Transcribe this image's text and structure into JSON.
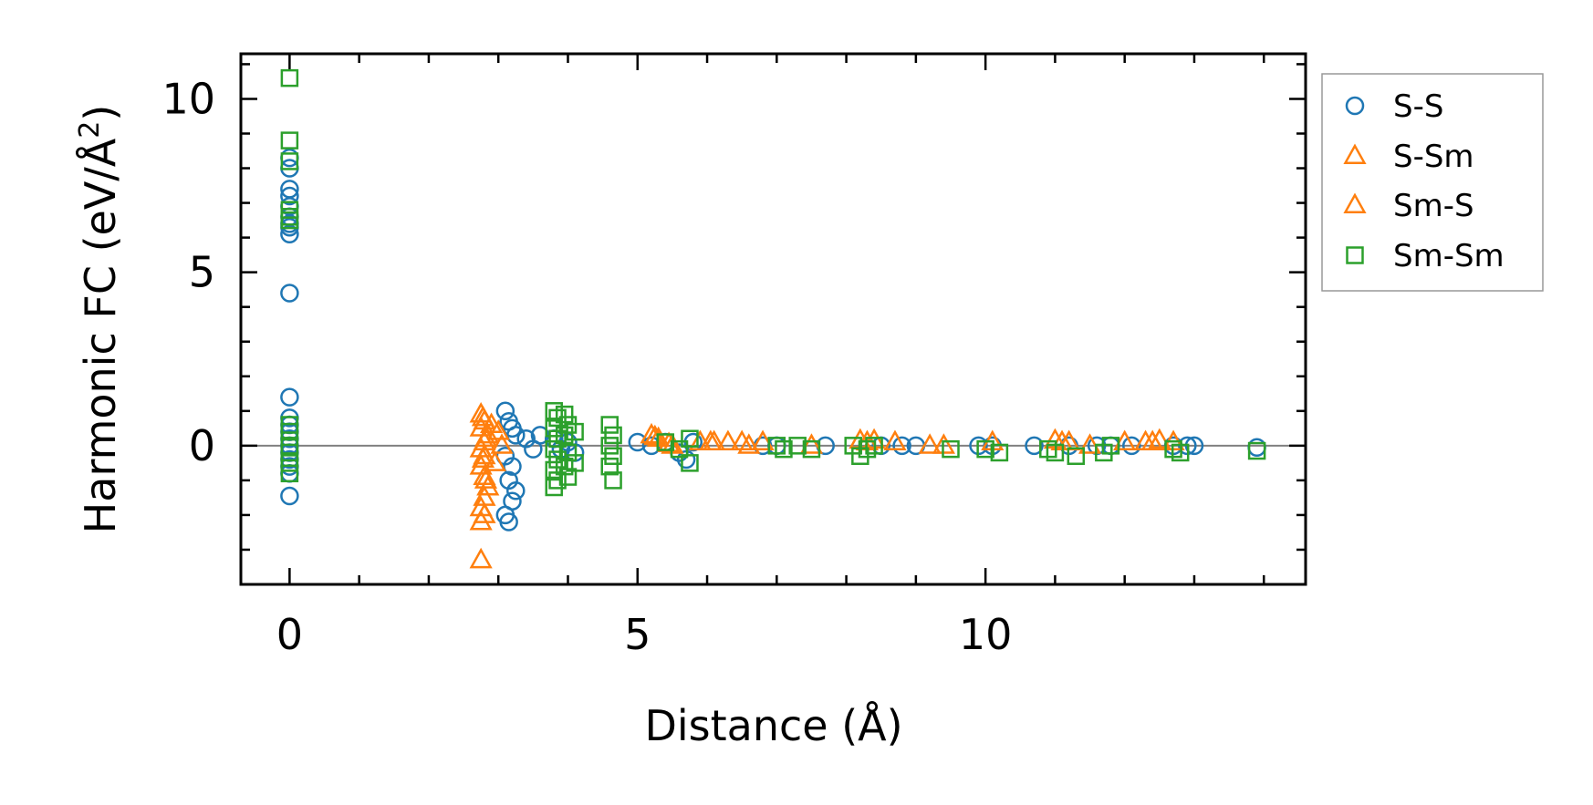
{
  "colors": {
    "S-S": "#1f77b4",
    "S-Sm": "#ff7f0e",
    "Sm-S": "#ff7f0e",
    "Sm-Sm": "#2ca02c",
    "zero_line": "#808080"
  },
  "chart_data": {
    "type": "scatter",
    "xlabel": "Distance (Å)",
    "ylabel_main": "Harmonic FC (eV/Å",
    "ylabel_sup": "2",
    "ylabel_close": ")",
    "xlim": [
      -0.7,
      14.6
    ],
    "ylim": [
      -4.0,
      11.3
    ],
    "x_ticks": [
      0,
      5,
      10
    ],
    "x_tick_labels": [
      "0",
      "5",
      "10"
    ],
    "x_minor_step": 1,
    "y_ticks": [
      0,
      5,
      10
    ],
    "y_tick_labels": [
      "0",
      "5",
      "10"
    ],
    "y_minor_step": 1,
    "zero_line": true,
    "legend_position": "outside-right",
    "series": [
      {
        "name": "S-S",
        "marker": "circle",
        "color": "#1f77b4",
        "points": [
          [
            0,
            8.3
          ],
          [
            0,
            8.0
          ],
          [
            0,
            7.4
          ],
          [
            0,
            7.2
          ],
          [
            0,
            6.9
          ],
          [
            0,
            6.6
          ],
          [
            0,
            6.4
          ],
          [
            0,
            6.3
          ],
          [
            0,
            6.1
          ],
          [
            0,
            4.4
          ],
          [
            0,
            1.4
          ],
          [
            0,
            0.8
          ],
          [
            0,
            0.6
          ],
          [
            0,
            0.4
          ],
          [
            0,
            0.2
          ],
          [
            0,
            0.0
          ],
          [
            0,
            -0.2
          ],
          [
            0,
            -0.4
          ],
          [
            0,
            -0.6
          ],
          [
            0,
            -0.8
          ],
          [
            0,
            -1.45
          ],
          [
            3.1,
            1.0
          ],
          [
            3.15,
            0.7
          ],
          [
            3.2,
            0.5
          ],
          [
            3.25,
            0.3
          ],
          [
            3.1,
            -0.3
          ],
          [
            3.2,
            -0.6
          ],
          [
            3.15,
            -1.0
          ],
          [
            3.25,
            -1.3
          ],
          [
            3.2,
            -1.6
          ],
          [
            3.1,
            -2.0
          ],
          [
            3.15,
            -2.2
          ],
          [
            3.4,
            0.2
          ],
          [
            3.6,
            0.3
          ],
          [
            3.8,
            0.2
          ],
          [
            4.0,
            0.1
          ],
          [
            4.1,
            -0.2
          ],
          [
            3.9,
            -0.1
          ],
          [
            3.5,
            -0.1
          ],
          [
            5.0,
            0.1
          ],
          [
            5.2,
            0.0
          ],
          [
            5.4,
            0.1
          ],
          [
            5.6,
            -0.2
          ],
          [
            5.7,
            -0.4
          ],
          [
            5.8,
            0.1
          ],
          [
            6.8,
            0.0
          ],
          [
            7.0,
            0.0
          ],
          [
            7.7,
            0.0
          ],
          [
            8.5,
            0.0
          ],
          [
            8.8,
            0.0
          ],
          [
            9.0,
            0.0
          ],
          [
            9.9,
            0.0
          ],
          [
            10.1,
            0.0
          ],
          [
            10.7,
            0.0
          ],
          [
            11.2,
            0.0
          ],
          [
            11.6,
            0.0
          ],
          [
            11.8,
            0.0
          ],
          [
            12.1,
            0.0
          ],
          [
            12.7,
            0.0
          ],
          [
            12.9,
            0.0
          ],
          [
            13.0,
            0.0
          ],
          [
            13.9,
            -0.05
          ]
        ]
      },
      {
        "name": "S-Sm",
        "marker": "triangle",
        "color": "#ff7f0e",
        "points": [
          [
            2.75,
            0.9
          ],
          [
            2.8,
            0.7
          ],
          [
            2.75,
            0.5
          ],
          [
            2.85,
            0.3
          ],
          [
            2.8,
            0.1
          ],
          [
            2.75,
            -0.1
          ],
          [
            2.8,
            -0.3
          ],
          [
            2.75,
            -0.6
          ],
          [
            2.8,
            -0.9
          ],
          [
            2.85,
            -1.2
          ],
          [
            2.8,
            -1.5
          ],
          [
            2.75,
            -1.8
          ],
          [
            2.8,
            -2.0
          ],
          [
            2.75,
            -2.2
          ],
          [
            2.75,
            -3.3
          ],
          [
            2.9,
            0.6
          ],
          [
            3.0,
            0.4
          ],
          [
            3.05,
            0.0
          ],
          [
            2.95,
            -0.5
          ],
          [
            5.2,
            0.3
          ],
          [
            5.3,
            0.2
          ],
          [
            5.5,
            0.0
          ],
          [
            5.9,
            0.1
          ],
          [
            6.1,
            0.1
          ],
          [
            6.3,
            0.1
          ],
          [
            6.5,
            0.1
          ],
          [
            6.8,
            0.1
          ],
          [
            7.5,
            0.0
          ],
          [
            8.2,
            0.15
          ],
          [
            8.4,
            0.15
          ],
          [
            8.7,
            0.1
          ],
          [
            9.2,
            0.0
          ],
          [
            10.1,
            0.1
          ],
          [
            11.0,
            0.15
          ],
          [
            11.2,
            0.1
          ],
          [
            11.5,
            0.0
          ],
          [
            12.0,
            0.1
          ],
          [
            12.3,
            0.1
          ],
          [
            12.5,
            0.15
          ],
          [
            12.7,
            0.1
          ]
        ]
      },
      {
        "name": "Sm-S",
        "marker": "triangle",
        "color": "#ff7f0e",
        "points": [
          [
            2.78,
            0.8
          ],
          [
            2.82,
            0.2
          ],
          [
            2.78,
            -0.4
          ],
          [
            2.82,
            -1.0
          ],
          [
            5.25,
            0.25
          ],
          [
            5.45,
            0.05
          ],
          [
            6.05,
            0.1
          ],
          [
            6.6,
            0.0
          ],
          [
            8.3,
            0.1
          ],
          [
            9.4,
            0.0
          ],
          [
            11.1,
            0.1
          ],
          [
            12.4,
            0.1
          ]
        ]
      },
      {
        "name": "Sm-Sm",
        "marker": "square",
        "color": "#2ca02c",
        "points": [
          [
            0,
            10.6
          ],
          [
            0,
            8.8
          ],
          [
            0,
            8.2
          ],
          [
            0,
            6.8
          ],
          [
            0,
            6.6
          ],
          [
            0,
            6.5
          ],
          [
            0,
            0.6
          ],
          [
            0,
            0.4
          ],
          [
            0,
            0.0
          ],
          [
            0,
            -0.2
          ],
          [
            0,
            -0.5
          ],
          [
            0,
            -0.8
          ],
          [
            3.8,
            1.0
          ],
          [
            3.85,
            0.8
          ],
          [
            3.8,
            0.5
          ],
          [
            3.85,
            0.2
          ],
          [
            3.8,
            -0.1
          ],
          [
            3.85,
            -0.4
          ],
          [
            3.8,
            -0.7
          ],
          [
            3.85,
            -1.0
          ],
          [
            3.8,
            -1.2
          ],
          [
            3.95,
            0.9
          ],
          [
            4.0,
            0.6
          ],
          [
            3.95,
            0.3
          ],
          [
            4.0,
            -0.2
          ],
          [
            3.95,
            -0.6
          ],
          [
            4.0,
            -0.9
          ],
          [
            4.1,
            0.4
          ],
          [
            4.1,
            -0.5
          ],
          [
            4.6,
            0.6
          ],
          [
            4.65,
            0.3
          ],
          [
            4.6,
            0.0
          ],
          [
            4.65,
            -0.3
          ],
          [
            4.6,
            -0.6
          ],
          [
            4.65,
            -1.0
          ],
          [
            5.4,
            0.1
          ],
          [
            5.6,
            -0.1
          ],
          [
            5.75,
            0.2
          ],
          [
            5.75,
            -0.5
          ],
          [
            7.0,
            0.0
          ],
          [
            7.1,
            -0.1
          ],
          [
            7.3,
            0.0
          ],
          [
            7.5,
            -0.1
          ],
          [
            8.1,
            0.0
          ],
          [
            8.3,
            -0.1
          ],
          [
            8.4,
            0.0
          ],
          [
            8.2,
            -0.3
          ],
          [
            9.5,
            -0.1
          ],
          [
            10.0,
            -0.1
          ],
          [
            10.2,
            -0.2
          ],
          [
            10.9,
            -0.1
          ],
          [
            11.0,
            -0.2
          ],
          [
            11.3,
            -0.3
          ],
          [
            11.7,
            -0.2
          ],
          [
            11.8,
            0.0
          ],
          [
            12.7,
            -0.1
          ],
          [
            12.8,
            -0.2
          ],
          [
            13.9,
            -0.15
          ]
        ]
      }
    ]
  },
  "legend": [
    {
      "label": "S-S",
      "marker": "circle",
      "color": "#1f77b4"
    },
    {
      "label": "S-Sm",
      "marker": "triangle",
      "color": "#ff7f0e"
    },
    {
      "label": "Sm-S",
      "marker": "triangle",
      "color": "#ff7f0e"
    },
    {
      "label": "Sm-Sm",
      "marker": "square",
      "color": "#2ca02c"
    }
  ]
}
